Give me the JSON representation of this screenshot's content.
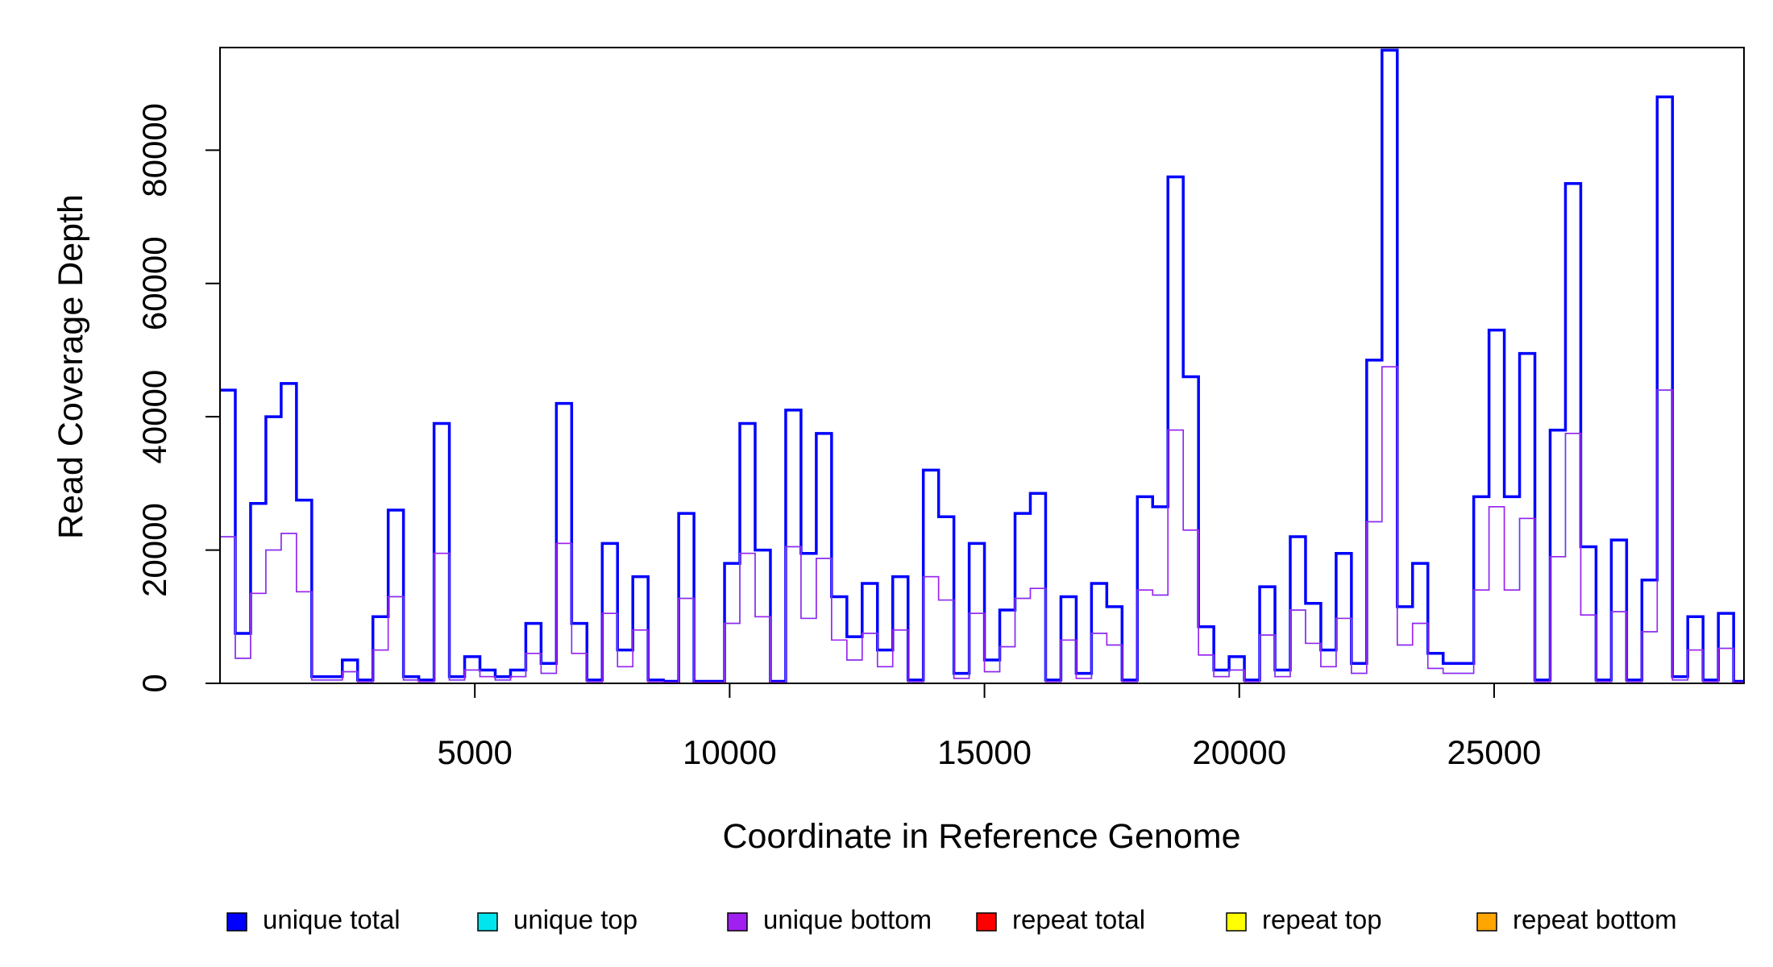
{
  "chart_data": {
    "type": "line",
    "drawstyle": "steps-post",
    "x_label": "Coordinate in Reference Genome",
    "y_label": "Read Coverage Depth",
    "xlim": [
      0,
      29903
    ],
    "ylim": [
      0,
      95400
    ],
    "xticks": [
      5000,
      10000,
      15000,
      20000,
      25000
    ],
    "yticks": [
      0,
      20000,
      40000,
      60000,
      80000
    ],
    "legend": "bottom",
    "x": [
      0,
      300,
      600,
      900,
      1200,
      1500,
      1800,
      2100,
      2400,
      2700,
      3000,
      3300,
      3600,
      3900,
      4200,
      4500,
      4800,
      5100,
      5400,
      5700,
      6000,
      6300,
      6600,
      6900,
      7200,
      7500,
      7800,
      8100,
      8400,
      8700,
      9000,
      9300,
      9600,
      9900,
      10200,
      10500,
      10800,
      11100,
      11400,
      11700,
      12000,
      12300,
      12600,
      12900,
      13200,
      13500,
      13800,
      14100,
      14400,
      14700,
      15000,
      15300,
      15600,
      15900,
      16200,
      16500,
      16800,
      17100,
      17400,
      17700,
      18000,
      18300,
      18600,
      18900,
      19200,
      19500,
      19800,
      20100,
      20400,
      20700,
      21000,
      21300,
      21600,
      21900,
      22200,
      22500,
      22800,
      23100,
      23400,
      23700,
      24000,
      24300,
      24600,
      24900,
      25200,
      25500,
      25800,
      26100,
      26400,
      26700,
      27000,
      27300,
      27600,
      27900,
      28200,
      28500,
      28800,
      29100,
      29400,
      29700
    ],
    "series": [
      {
        "name": "unique total",
        "color": "#0000ff",
        "values": [
          44000,
          7500,
          27000,
          40000,
          45000,
          27500,
          1000,
          1000,
          3500,
          500,
          10000,
          26000,
          1000,
          500,
          39000,
          1000,
          4000,
          2000,
          1000,
          2000,
          9000,
          3000,
          42000,
          9000,
          500,
          21000,
          5000,
          16000,
          500,
          300,
          25500,
          300,
          300,
          18000,
          39000,
          20000,
          300,
          41000,
          19500,
          37500,
          13000,
          7000,
          15000,
          5000,
          16000,
          500,
          32000,
          25000,
          1500,
          21000,
          3500,
          11000,
          25500,
          28500,
          500,
          13000,
          1500,
          15000,
          11500,
          500,
          28000,
          26500,
          76000,
          46000,
          8500,
          2000,
          4000,
          500,
          14500,
          2000,
          22000,
          12000,
          5000,
          19500,
          3000,
          48500,
          95000,
          11500,
          18000,
          4500,
          3000,
          3000,
          28000,
          53000,
          28000,
          49500,
          500,
          38000,
          75000,
          20500,
          500,
          21500,
          500,
          15500,
          88000,
          1000,
          10000,
          500,
          10500,
          300
        ]
      },
      {
        "name": "unique top",
        "color": "#00e5ee",
        "values": [
          22000,
          3750,
          13500,
          20000,
          22500,
          13750,
          500,
          500,
          1750,
          250,
          5000,
          13000,
          500,
          250,
          19500,
          500,
          2000,
          1000,
          500,
          1000,
          4500,
          1500,
          21000,
          4500,
          250,
          10500,
          2500,
          8000,
          250,
          150,
          12750,
          150,
          150,
          9000,
          19500,
          10000,
          150,
          20500,
          9750,
          18750,
          6500,
          3500,
          7500,
          2500,
          8000,
          250,
          16000,
          12500,
          750,
          10500,
          1750,
          5500,
          12750,
          14250,
          250,
          6500,
          750,
          7500,
          5750,
          250,
          14000,
          13250,
          38000,
          23000,
          4250,
          1000,
          2000,
          250,
          7250,
          1000,
          11000,
          6000,
          2500,
          9750,
          1500,
          24250,
          47500,
          5750,
          9000,
          2250,
          1500,
          1500,
          14000,
          26500,
          14000,
          24750,
          250,
          19000,
          37500,
          10250,
          250,
          10750,
          250,
          7750,
          44000,
          500,
          5000,
          250,
          5250,
          150
        ]
      },
      {
        "name": "unique bottom",
        "color": "#a020f0",
        "values": [
          22000,
          3750,
          13500,
          20000,
          22500,
          13750,
          500,
          500,
          1750,
          250,
          5000,
          13000,
          500,
          250,
          19500,
          500,
          2000,
          1000,
          500,
          1000,
          4500,
          1500,
          21000,
          4500,
          250,
          10500,
          2500,
          8000,
          250,
          150,
          12750,
          150,
          150,
          9000,
          19500,
          10000,
          150,
          20500,
          9750,
          18750,
          6500,
          3500,
          7500,
          2500,
          8000,
          250,
          16000,
          12500,
          750,
          10500,
          1750,
          5500,
          12750,
          14250,
          250,
          6500,
          750,
          7500,
          5750,
          250,
          14000,
          13250,
          38000,
          23000,
          4250,
          1000,
          2000,
          250,
          7250,
          1000,
          11000,
          6000,
          2500,
          9750,
          1500,
          24250,
          47500,
          5750,
          9000,
          2250,
          1500,
          1500,
          14000,
          26500,
          14000,
          24750,
          250,
          19000,
          37500,
          10250,
          250,
          10750,
          250,
          7750,
          44000,
          500,
          5000,
          250,
          5250,
          150
        ]
      },
      {
        "name": "repeat total",
        "color": "#ff0000",
        "values": [
          0,
          0,
          0,
          0,
          0,
          0,
          0,
          0,
          0,
          0,
          0,
          0,
          0,
          0,
          0,
          0,
          0,
          0,
          0,
          0,
          0,
          0,
          0,
          0,
          0,
          0,
          0,
          0,
          0,
          0,
          0,
          0,
          0,
          0,
          0,
          0,
          0,
          0,
          0,
          0,
          0,
          0,
          0,
          0,
          0,
          0,
          0,
          0,
          0,
          0,
          0,
          0,
          0,
          0,
          0,
          0,
          0,
          0,
          0,
          0,
          0,
          0,
          0,
          0,
          0,
          0,
          0,
          0,
          0,
          0,
          0,
          0,
          0,
          0,
          0,
          0,
          0,
          0,
          0,
          0,
          0,
          0,
          0,
          0,
          0,
          0,
          0,
          0,
          0,
          0,
          0,
          0,
          0,
          0,
          0,
          0,
          0,
          0,
          0,
          0
        ]
      },
      {
        "name": "repeat top",
        "color": "#ffff00",
        "values": [
          0,
          0,
          0,
          0,
          0,
          0,
          0,
          0,
          0,
          0,
          0,
          0,
          0,
          0,
          0,
          0,
          0,
          0,
          0,
          0,
          0,
          0,
          0,
          0,
          0,
          0,
          0,
          0,
          0,
          0,
          0,
          0,
          0,
          0,
          0,
          0,
          0,
          0,
          0,
          0,
          0,
          0,
          0,
          0,
          0,
          0,
          0,
          0,
          0,
          0,
          0,
          0,
          0,
          0,
          0,
          0,
          0,
          0,
          0,
          0,
          0,
          0,
          0,
          0,
          0,
          0,
          0,
          0,
          0,
          0,
          0,
          0,
          0,
          0,
          0,
          0,
          0,
          0,
          0,
          0,
          0,
          0,
          0,
          0,
          0,
          0,
          0,
          0,
          0,
          0,
          0,
          0,
          0,
          0,
          0,
          0,
          0,
          0,
          0,
          0
        ]
      },
      {
        "name": "repeat bottom",
        "color": "#ffa500",
        "values": [
          0,
          0,
          0,
          0,
          0,
          0,
          0,
          0,
          0,
          0,
          0,
          0,
          0,
          0,
          0,
          0,
          0,
          0,
          0,
          0,
          0,
          0,
          0,
          0,
          0,
          0,
          0,
          0,
          0,
          0,
          0,
          0,
          0,
          0,
          0,
          0,
          0,
          0,
          0,
          0,
          0,
          0,
          0,
          0,
          0,
          0,
          0,
          0,
          0,
          0,
          0,
          0,
          0,
          0,
          0,
          0,
          0,
          0,
          0,
          0,
          0,
          0,
          0,
          0,
          0,
          0,
          0,
          0,
          0,
          0,
          0,
          0,
          0,
          0,
          0,
          0,
          0,
          0,
          0,
          0,
          0,
          0,
          0,
          0,
          0,
          0,
          0,
          0,
          0,
          0,
          0,
          0,
          0,
          0,
          0,
          0,
          0,
          0,
          0,
          0
        ]
      }
    ]
  }
}
